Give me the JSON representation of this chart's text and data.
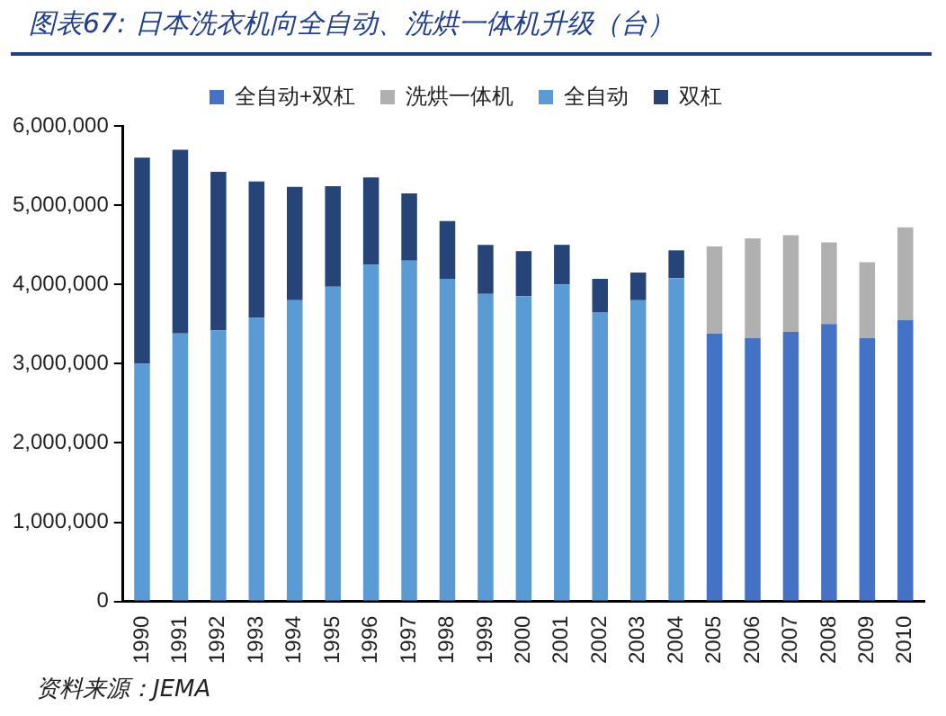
{
  "chart_data": {
    "type": "bar",
    "title": "图表67:  日本洗衣机向全自动、洗烘一体机升级（台）",
    "annotations": [
      "资料来源：JEMA"
    ],
    "stacked": true,
    "legend": "top",
    "grid": false,
    "categories": [
      "1990",
      "1991",
      "1992",
      "1993",
      "1994",
      "1995",
      "1996",
      "1997",
      "1998",
      "1999",
      "2000",
      "2001",
      "2002",
      "2003",
      "2004",
      "2005",
      "2006",
      "2007",
      "2008",
      "2009",
      "2010"
    ],
    "series": [
      {
        "name": "全自动+双杠",
        "color": "#4472c4",
        "values": [
          null,
          null,
          null,
          null,
          null,
          null,
          null,
          null,
          null,
          null,
          null,
          null,
          null,
          null,
          null,
          3380000,
          3320000,
          3400000,
          3500000,
          3320000,
          3550000
        ]
      },
      {
        "name": "洗烘一体机",
        "color": "#b0b0b0",
        "values": [
          null,
          null,
          null,
          null,
          null,
          null,
          null,
          null,
          null,
          null,
          null,
          null,
          null,
          null,
          null,
          1100000,
          1260000,
          1220000,
          1030000,
          960000,
          1170000
        ]
      },
      {
        "name": "全自动",
        "color": "#5b9bd5",
        "values": [
          3000000,
          3380000,
          3420000,
          3580000,
          3800000,
          3970000,
          4250000,
          4300000,
          4070000,
          3880000,
          3850000,
          4000000,
          3650000,
          3800000,
          4080000,
          null,
          null,
          null,
          null,
          null,
          null
        ]
      },
      {
        "name": "双杠",
        "color": "#264478",
        "values": [
          2600000,
          2320000,
          2000000,
          1720000,
          1430000,
          1270000,
          1100000,
          850000,
          730000,
          620000,
          570000,
          500000,
          420000,
          350000,
          350000,
          null,
          null,
          null,
          null,
          null,
          null
        ]
      }
    ],
    "ylim": [
      0,
      6000000
    ],
    "yticks": [
      {
        "value": 0,
        "label": "0"
      },
      {
        "value": 1000000,
        "label": "1,000,000"
      },
      {
        "value": 2000000,
        "label": "2,000,000"
      },
      {
        "value": 3000000,
        "label": "3,000,000"
      },
      {
        "value": 4000000,
        "label": "4,000,000"
      },
      {
        "value": 5000000,
        "label": "5,000,000"
      },
      {
        "value": 6000000,
        "label": "6,000,000"
      }
    ]
  }
}
